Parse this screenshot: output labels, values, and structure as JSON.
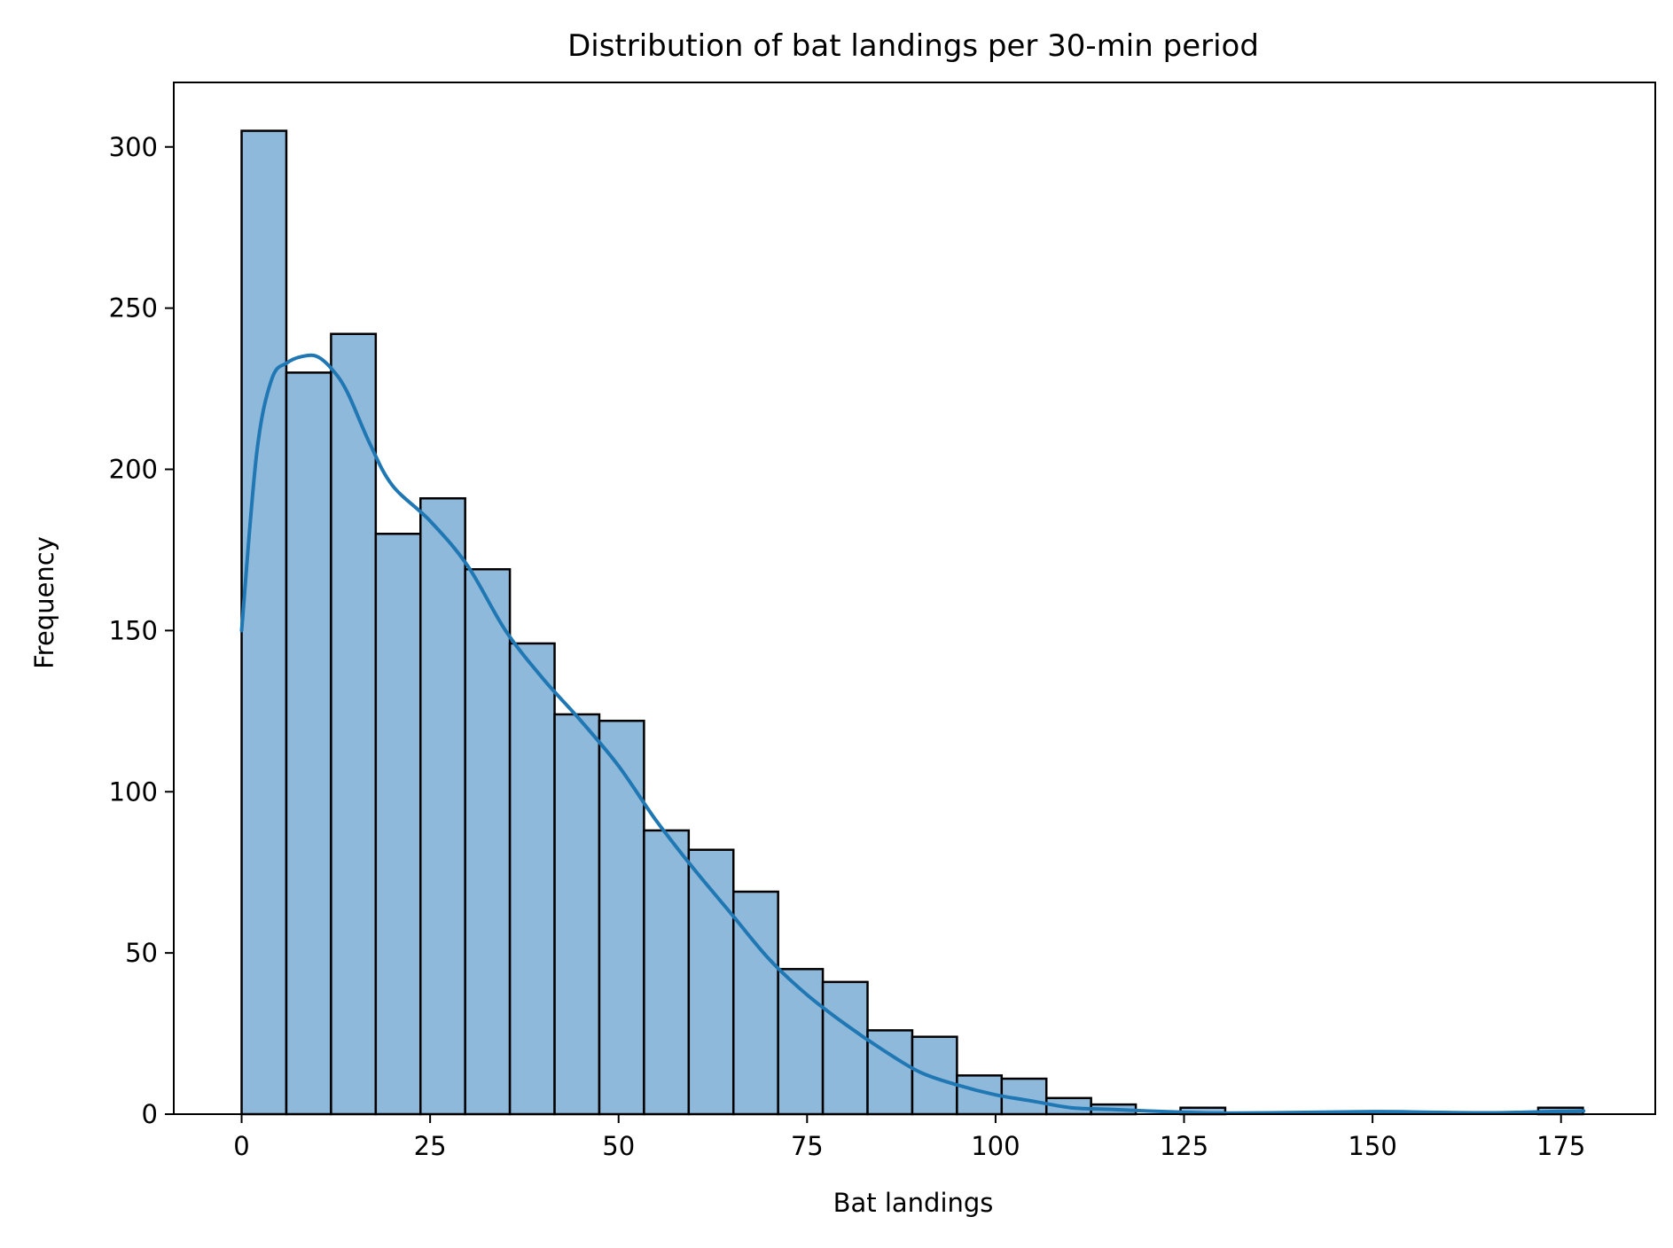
{
  "chart_data": {
    "type": "bar",
    "subtype": "histogram",
    "title": "Distribution of bat landings per 30-min period",
    "xlabel": "Bat landings",
    "ylabel": "Frequency",
    "xlim": [
      -9,
      187.5
    ],
    "ylim": [
      0,
      320
    ],
    "xticks": [
      0,
      25,
      50,
      75,
      100,
      125,
      150,
      175
    ],
    "yticks": [
      0,
      50,
      100,
      150,
      200,
      250,
      300
    ],
    "bins": {
      "start": 0,
      "width": 5.93,
      "counts": [
        305,
        230,
        242,
        180,
        191,
        169,
        146,
        124,
        122,
        88,
        82,
        69,
        45,
        41,
        26,
        24,
        12,
        11,
        5,
        3,
        0,
        2,
        0,
        0,
        0,
        0,
        0,
        0,
        0,
        2
      ]
    },
    "kde": {
      "x": [
        0,
        2,
        4,
        6,
        8,
        10,
        12,
        14,
        17,
        20,
        25,
        30,
        35,
        40,
        45,
        50,
        55,
        60,
        65,
        70,
        75,
        80,
        85,
        90,
        95,
        100,
        105,
        110,
        115,
        120,
        125,
        130,
        140,
        150,
        155,
        160,
        165,
        170,
        175,
        178
      ],
      "y": [
        150,
        205,
        228,
        233,
        235,
        235,
        231,
        224,
        208,
        195,
        184,
        170,
        150,
        135,
        122,
        108,
        91,
        76,
        62,
        48,
        37,
        28,
        20,
        13,
        9,
        6,
        4,
        2,
        1.5,
        1,
        0.6,
        0.3,
        0.5,
        0.8,
        0.7,
        0.5,
        0.4,
        0.6,
        0.9,
        1
      ],
      "color": "#1f77b4"
    },
    "bar_fill": "#8fb9da",
    "bar_edge": "#000000",
    "grid": false
  }
}
